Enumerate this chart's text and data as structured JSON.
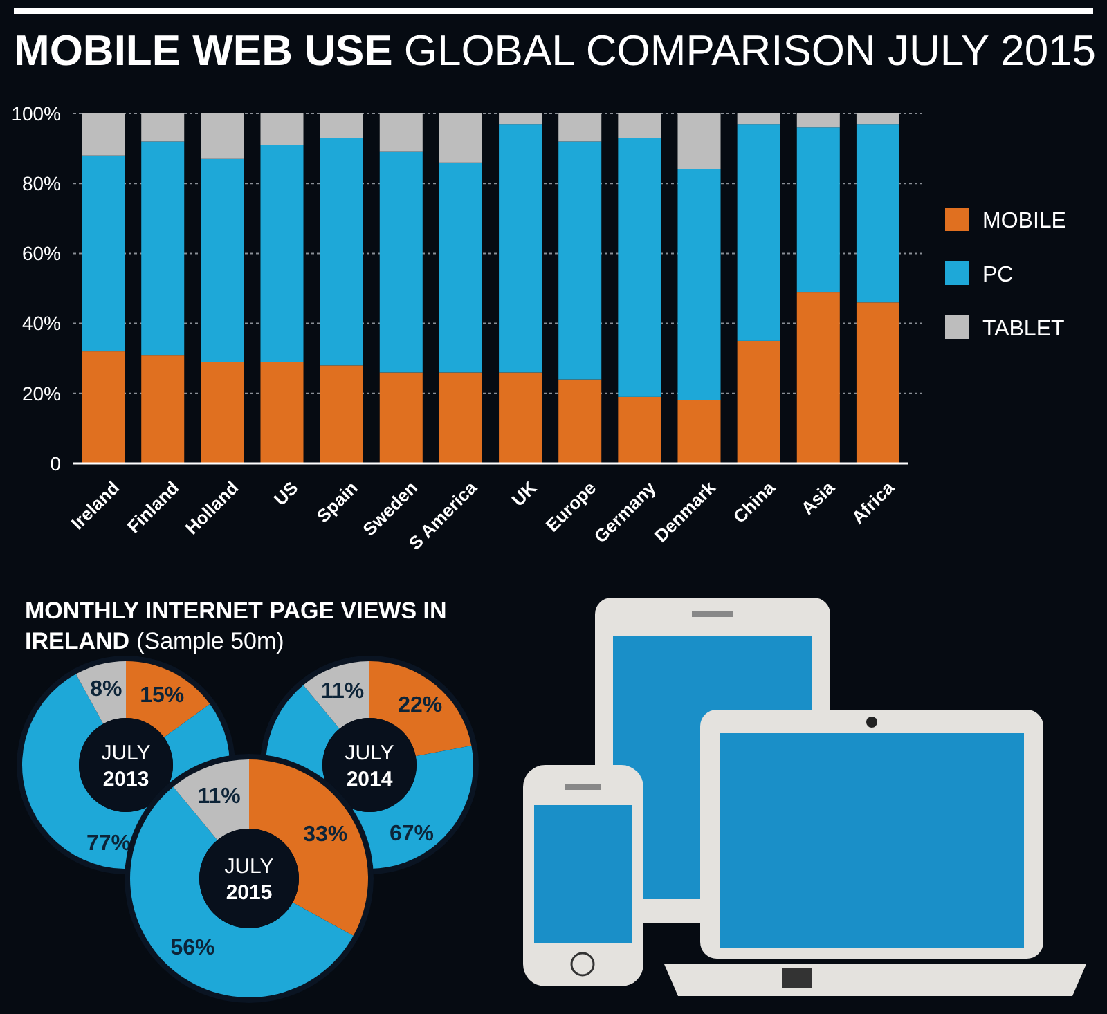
{
  "chart_data": [
    {
      "type": "bar",
      "title": "MOBILE WEB USE",
      "subtitle": "GLOBAL COMPARISON JULY 2015",
      "categories": [
        "Ireland",
        "Finland",
        "Holland",
        "US",
        "Spain",
        "Sweden",
        "S America",
        "UK",
        "Europe",
        "Germany",
        "Denmark",
        "China",
        "Asia",
        "Africa"
      ],
      "stacked": true,
      "series": [
        {
          "name": "MOBILE",
          "color": "#e07020",
          "values": [
            32,
            31,
            29,
            29,
            28,
            26,
            26,
            26,
            24,
            19,
            18,
            35,
            49,
            46
          ]
        },
        {
          "name": "PC",
          "color": "#1ea8d8",
          "values": [
            56,
            61,
            58,
            62,
            65,
            63,
            60,
            71,
            68,
            74,
            66,
            62,
            47,
            51
          ]
        },
        {
          "name": "TABLET",
          "color": "#bdbdbd",
          "values": [
            12,
            8,
            13,
            9,
            7,
            11,
            14,
            3,
            8,
            7,
            16,
            3,
            4,
            3
          ]
        }
      ],
      "ylim": [
        0,
        100
      ],
      "yticks": [
        0,
        {
          "value": 20,
          "label": "20%"
        },
        {
          "value": 40,
          "label": "40%"
        },
        {
          "value": 60,
          "label": "60%"
        },
        {
          "value": 80,
          "label": "80%"
        },
        {
          "value": 100,
          "label": "100%"
        }
      ],
      "grid": "y",
      "legend": "right"
    },
    {
      "type": "donut",
      "title": "MONTHLY INTERNET PAGE VIEWS IN IRELAND",
      "subtitle": "(Sample 50m)",
      "annotations": [
        "JULY",
        "2013"
      ],
      "categories": [
        null,
        null,
        null
      ],
      "values": [
        15,
        77,
        8
      ],
      "colors": [
        "#e07020",
        "#1ea8d8",
        "#bdbdbd"
      ],
      "value_labels": [
        "15%",
        "77%",
        "8%"
      ]
    },
    {
      "type": "donut",
      "annotations": [
        "JULY",
        "2014"
      ],
      "categories": [
        null,
        null,
        null
      ],
      "values": [
        22,
        67,
        11
      ],
      "colors": [
        "#e07020",
        "#1ea8d8",
        "#bdbdbd"
      ],
      "value_labels": [
        "22%",
        "67%",
        "11%"
      ]
    },
    {
      "type": "donut",
      "annotations": [
        "JULY",
        "2015"
      ],
      "categories": [
        null,
        null,
        null
      ],
      "values": [
        33,
        56,
        11
      ],
      "colors": [
        "#e07020",
        "#1ea8d8",
        "#bdbdbd"
      ],
      "value_labels": [
        "33%",
        "56%",
        "11%"
      ]
    }
  ]
}
